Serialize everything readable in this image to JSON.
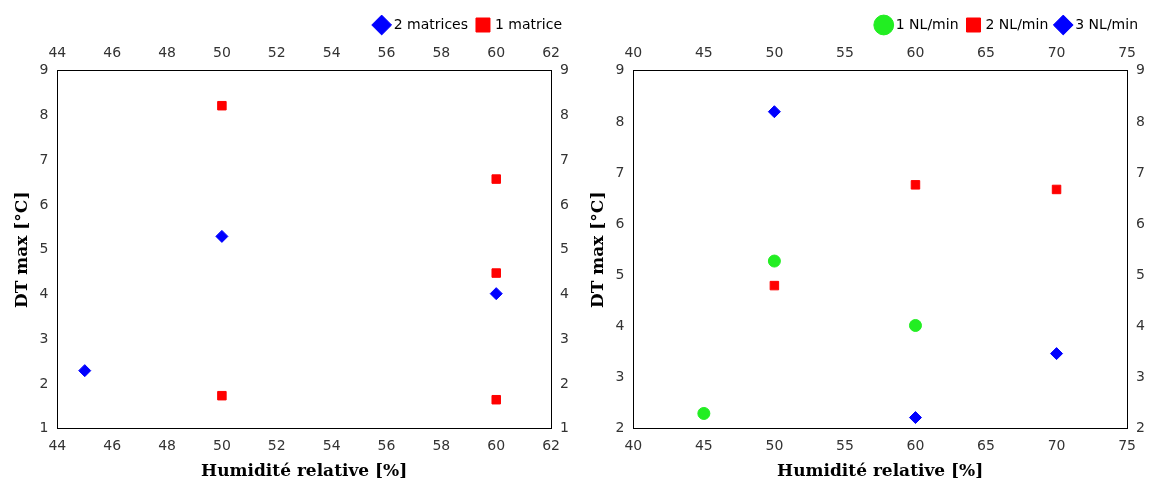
{
  "chart_data": [
    {
      "type": "scatter",
      "xlabel": "Humidité relative [%]",
      "ylabel": "DT max [°C]",
      "xlim": [
        44,
        62
      ],
      "xticks": [
        44,
        46,
        48,
        50,
        52,
        54,
        56,
        58,
        60,
        62
      ],
      "x2lim": [
        44,
        62
      ],
      "x2ticks": [
        44,
        46,
        48,
        50,
        52,
        54,
        56,
        58,
        60,
        62
      ],
      "ylim": [
        1,
        9
      ],
      "yticks": [
        1,
        2,
        3,
        4,
        5,
        6,
        7,
        8,
        9
      ],
      "y2lim": [
        1,
        9
      ],
      "y2ticks": [
        1,
        2,
        3,
        4,
        5,
        6,
        7,
        8,
        9
      ],
      "grid": false,
      "legend": "top right",
      "series": [
        {
          "name": "2 matrices",
          "color": "#0000ff",
          "marker": "diamond",
          "x": [
            45,
            50,
            60
          ],
          "values": [
            2.3,
            5.3,
            4.02
          ]
        },
        {
          "name": "1 matrice",
          "color": "#ff0000",
          "marker": "square",
          "x": [
            50,
            50,
            60,
            60,
            60
          ],
          "values": [
            8.22,
            1.74,
            6.58,
            4.48,
            1.65
          ]
        }
      ]
    },
    {
      "type": "scatter",
      "xlabel": "Humidité relative [%]",
      "ylabel": "DT max [°C]",
      "xlim": [
        40,
        75
      ],
      "xticks": [
        40,
        45,
        50,
        55,
        60,
        65,
        70,
        75
      ],
      "x2lim": [
        40,
        75
      ],
      "x2ticks": [
        40,
        45,
        50,
        55,
        60,
        65,
        70,
        75
      ],
      "ylim": [
        2,
        9
      ],
      "yticks": [
        2,
        3,
        4,
        5,
        6,
        7,
        8,
        9
      ],
      "y2lim": [
        2,
        9
      ],
      "y2ticks": [
        2,
        3,
        4,
        5,
        6,
        7,
        8,
        9
      ],
      "grid": false,
      "legend": "top right",
      "series": [
        {
          "name": "1 NL/min",
          "color": "#22ee22",
          "marker": "circle",
          "x": [
            45,
            50,
            60
          ],
          "values": [
            2.3,
            5.28,
            4.02
          ]
        },
        {
          "name": "2 NL/min",
          "color": "#ff0000",
          "marker": "square",
          "x": [
            50,
            60,
            70
          ],
          "values": [
            4.8,
            6.77,
            6.68
          ]
        },
        {
          "name": "3 NL/min",
          "color": "#0000ff",
          "marker": "diamond",
          "x": [
            50,
            60,
            70
          ],
          "values": [
            8.2,
            2.22,
            3.47
          ]
        }
      ]
    }
  ]
}
